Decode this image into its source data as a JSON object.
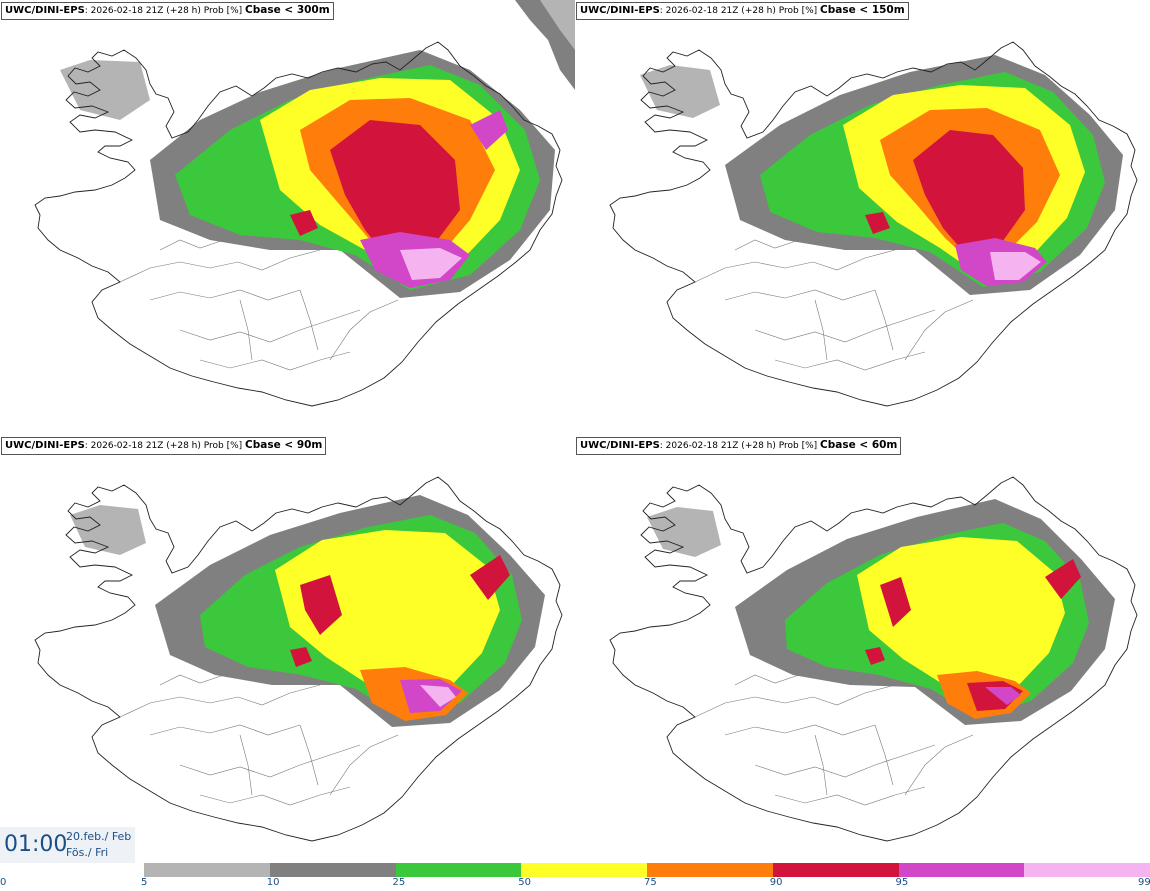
{
  "panels": [
    {
      "model": "UWC/DINI-EPS",
      "info": ": 2026-02-18 21Z (+28 h) Prob [%] ",
      "variable": "Cbase < 300m"
    },
    {
      "model": "UWC/DINI-EPS",
      "info": ": 2026-02-18 21Z (+28 h) Prob [%] ",
      "variable": "Cbase < 150m"
    },
    {
      "model": "UWC/DINI-EPS",
      "info": ": 2026-02-18 21Z (+28 h) Prob [%] ",
      "variable": "Cbase < 90m"
    },
    {
      "model": "UWC/DINI-EPS",
      "info": ": 2026-02-18 21Z (+28 h) Prob [%] ",
      "variable": "Cbase < 60m"
    }
  ],
  "valid_time": {
    "time": "01:00",
    "date_line": "20.feb./ Feb",
    "day_line": "Fös./ Fri"
  },
  "legend": {
    "ticks": [
      "0",
      "5",
      "10",
      "25",
      "50",
      "75",
      "90",
      "95",
      "99"
    ],
    "colors": [
      "#b4b4b4",
      "#808080",
      "#3cc83c",
      "#ffff28",
      "#ff7d0a",
      "#d2143c",
      "#d246c8",
      "#f5b4f0"
    ]
  },
  "colors": {
    "lightgray": "#b4b4b4",
    "gray": "#808080",
    "green": "#3cc83c",
    "yellow": "#ffff28",
    "orange": "#ff7d0a",
    "red": "#d2143c",
    "magenta": "#d246c8",
    "pink": "#f5b4f0"
  }
}
